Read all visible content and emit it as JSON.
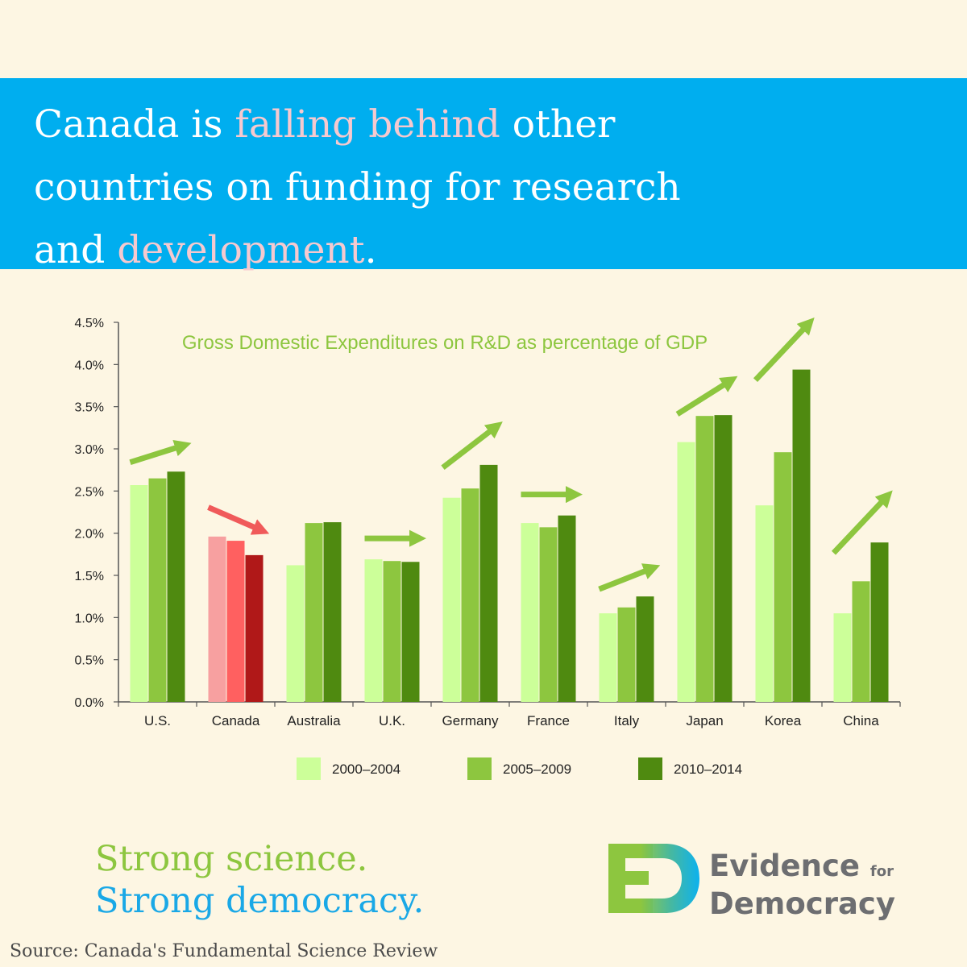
{
  "header": {
    "line1_a": "Canada is ",
    "line1_hl": "falling behind",
    "line1_b": " other",
    "line2": "countries on funding for research",
    "line3_a": "and ",
    "line3_hl": "development",
    "line3_b": "."
  },
  "chart_data": {
    "type": "bar",
    "title": "Gross Domestic Expenditures on R&D as percentage of GDP",
    "xlabel": "",
    "ylabel": "",
    "ylim": [
      0,
      4.5
    ],
    "yticks": [
      "0.0%",
      "0.5%",
      "1.0%",
      "1.5%",
      "2.0%",
      "2.5%",
      "3.0%",
      "3.5%",
      "4.0%",
      "4.5%"
    ],
    "categories": [
      "U.S.",
      "Canada",
      "Australia",
      "U.K.",
      "Germany",
      "France",
      "Italy",
      "Japan",
      "Korea",
      "China"
    ],
    "series": [
      {
        "name": "2000–2004",
        "values": [
          2.57,
          1.96,
          1.62,
          1.69,
          2.42,
          2.12,
          1.05,
          3.08,
          2.33,
          1.05
        ]
      },
      {
        "name": "2005–2009",
        "values": [
          2.65,
          1.91,
          2.12,
          1.67,
          2.53,
          2.07,
          1.12,
          3.39,
          2.96,
          1.43
        ]
      },
      {
        "name": "2010–2014",
        "values": [
          2.73,
          1.74,
          2.13,
          1.66,
          2.81,
          2.21,
          1.25,
          3.4,
          3.94,
          1.89
        ]
      }
    ],
    "series_colors": [
      "#ccff99",
      "#8dc63f",
      "#4f8a10"
    ],
    "highlight": {
      "category": "Canada",
      "colors": [
        "#f7a0a0",
        "#ff6060",
        "#b01818"
      ]
    },
    "trend_arrows": [
      {
        "category": "U.S.",
        "direction": "up",
        "color": "#8dc63f"
      },
      {
        "category": "Canada",
        "direction": "down",
        "color": "#f05a5a"
      },
      {
        "category": "U.K.",
        "direction": "flat",
        "color": "#8dc63f"
      },
      {
        "category": "Germany",
        "direction": "up",
        "color": "#8dc63f"
      },
      {
        "category": "France",
        "direction": "flat",
        "color": "#8dc63f"
      },
      {
        "category": "Italy",
        "direction": "up",
        "color": "#8dc63f"
      },
      {
        "category": "Japan",
        "direction": "up",
        "color": "#8dc63f"
      },
      {
        "category": "Korea",
        "direction": "up",
        "color": "#8dc63f"
      },
      {
        "category": "China",
        "direction": "up",
        "color": "#8dc63f"
      }
    ],
    "legend_position": "bottom"
  },
  "tagline": {
    "line1": "Strong science.",
    "line2": "Strong democracy."
  },
  "logo": {
    "line1": "Evidence",
    "line1_small": "for",
    "line2": "Democracy"
  },
  "footer": {
    "source": "Source: Canada's Fundamental Science Review"
  },
  "colors": {
    "background": "#fdf6e3",
    "banner": "#00aeef",
    "highlight_text": "#f6c9cf",
    "green": "#8dc63f",
    "blue": "#1aa8e6"
  }
}
